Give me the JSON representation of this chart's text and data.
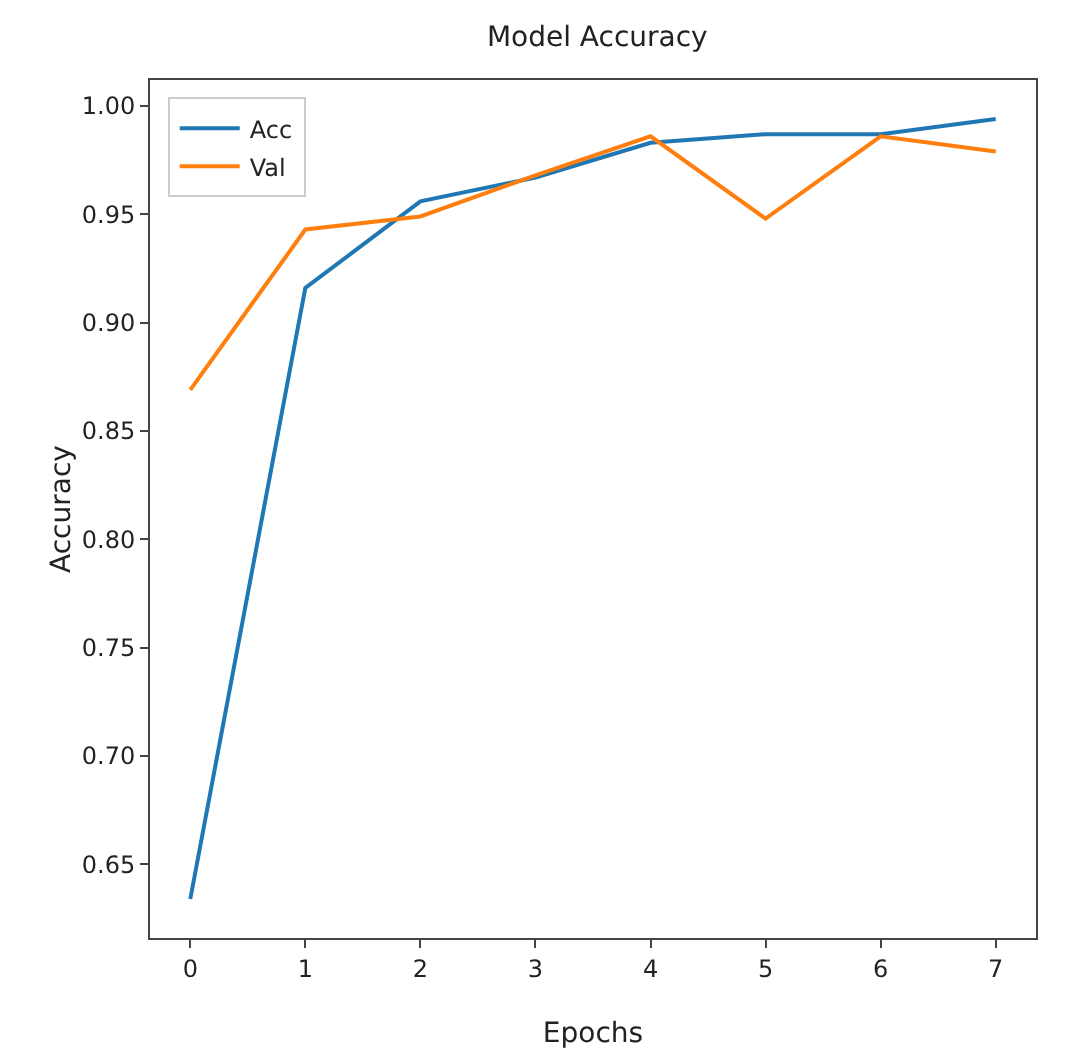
{
  "chart_data": {
    "type": "line",
    "title": "Model Accuracy",
    "xlabel": "Epochs",
    "ylabel": "Accuracy",
    "x": [
      0,
      1,
      2,
      3,
      4,
      5,
      6,
      7
    ],
    "series": [
      {
        "name": "Acc",
        "color": "#1f77b4",
        "values": [
          0.634,
          0.916,
          0.956,
          0.967,
          0.983,
          0.987,
          0.987,
          0.994
        ]
      },
      {
        "name": "Val",
        "color": "#ff7f0e",
        "values": [
          0.869,
          0.943,
          0.949,
          0.968,
          0.986,
          0.948,
          0.986,
          0.979
        ]
      }
    ],
    "xlim": [
      -0.35,
      7.35
    ],
    "xticks": [
      0,
      1,
      2,
      3,
      4,
      5,
      6,
      7
    ],
    "ylim": [
      0.616,
      1.012
    ],
    "yticks": [
      {
        "value": 0.65,
        "label": "0.65"
      },
      {
        "value": 0.7,
        "label": "0.70"
      },
      {
        "value": 0.75,
        "label": "0.75"
      },
      {
        "value": 0.8,
        "label": "0.80"
      },
      {
        "value": 0.85,
        "label": "0.85"
      },
      {
        "value": 0.9,
        "label": "0.90"
      },
      {
        "value": 0.95,
        "label": "0.95"
      },
      {
        "value": 1.0,
        "label": "1.00"
      }
    ],
    "grid": false,
    "legend": "top left",
    "marker": "none",
    "line_style": "solid"
  }
}
